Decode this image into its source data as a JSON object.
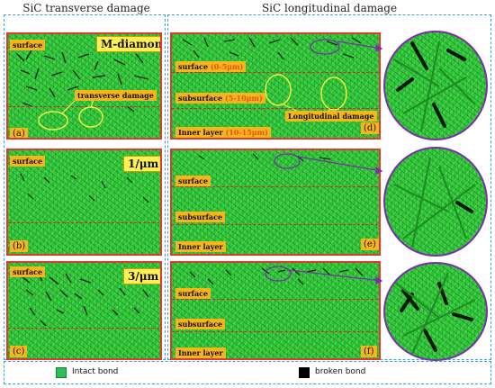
{
  "headers": {
    "left": "SiC transverse damage",
    "right": "SiC longitudinal damage"
  },
  "row1": {
    "left_surface": "surface",
    "method": "M-diamond",
    "transverse_damage": "transverse damage",
    "left_letter": "(a)",
    "right_surface": "surface",
    "right_surface_range": "(0-5μm)",
    "subsurface": "subsurface",
    "subsurface_range": "(5-10μm)",
    "longitudinal_damage": "Longitudinal damage",
    "inner_layer": "Inner layer",
    "inner_range": "(10-15μm)",
    "right_letter": "(d)"
  },
  "row2": {
    "left_surface": "surface",
    "method": "1/μm",
    "left_letter": "(b)",
    "right_surface": "surface",
    "subsurface": "subsurface",
    "inner_layer": "Inner layer",
    "right_letter": "(e)"
  },
  "row3": {
    "left_surface": "surface",
    "method": "3/μm",
    "left_letter": "(c)",
    "right_surface": "surface",
    "subsurface": "subsurface",
    "inner_layer": "Inner layer",
    "right_letter": "(f)"
  },
  "legend": {
    "intact": "Intact bond",
    "broken": "broken bond",
    "intact_color": "#2bbf55",
    "broken_color": "#000000"
  },
  "colors": {
    "frame": "#e03a2a",
    "dashed": "#3aa0e0",
    "callout": "#7a2ea8",
    "ellipse": "#f2f23a"
  }
}
